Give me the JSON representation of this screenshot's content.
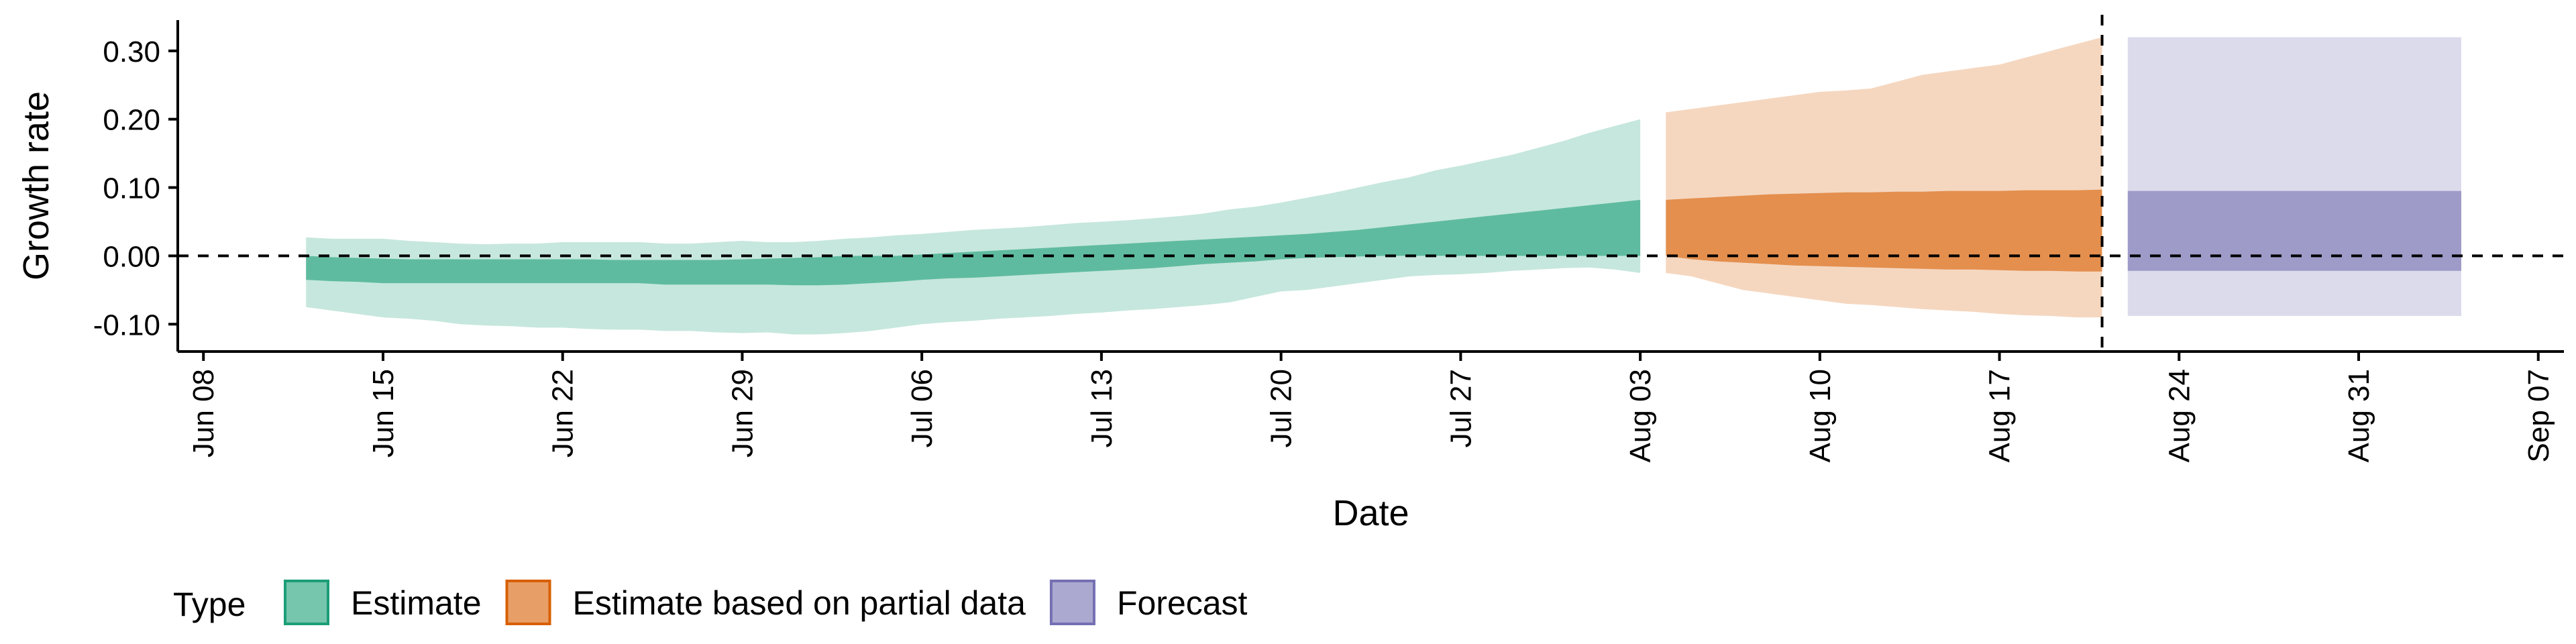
{
  "chart_data": {
    "type": "area",
    "title": "",
    "xlabel": "Date",
    "ylabel": "Growth rate",
    "x_axis": {
      "type": "date",
      "range": [
        "2020-06-07",
        "2020-09-08"
      ],
      "ticks": [
        {
          "date": "2020-06-08",
          "label": "Jun 08"
        },
        {
          "date": "2020-06-15",
          "label": "Jun 15"
        },
        {
          "date": "2020-06-22",
          "label": "Jun 22"
        },
        {
          "date": "2020-06-29",
          "label": "Jun 29"
        },
        {
          "date": "2020-07-06",
          "label": "Jul 06"
        },
        {
          "date": "2020-07-13",
          "label": "Jul 13"
        },
        {
          "date": "2020-07-20",
          "label": "Jul 20"
        },
        {
          "date": "2020-07-27",
          "label": "Jul 27"
        },
        {
          "date": "2020-08-03",
          "label": "Aug 03"
        },
        {
          "date": "2020-08-10",
          "label": "Aug 10"
        },
        {
          "date": "2020-08-17",
          "label": "Aug 17"
        },
        {
          "date": "2020-08-24",
          "label": "Aug 24"
        },
        {
          "date": "2020-08-31",
          "label": "Aug 31"
        },
        {
          "date": "2020-09-07",
          "label": "Sep 07"
        }
      ]
    },
    "y_axis": {
      "range": [
        -0.14,
        0.345
      ],
      "ticks": [
        {
          "value": -0.1,
          "label": "-0.10"
        },
        {
          "value": 0.0,
          "label": "0.00"
        },
        {
          "value": 0.1,
          "label": "0.10"
        },
        {
          "value": 0.2,
          "label": "0.20"
        },
        {
          "value": 0.3,
          "label": "0.30"
        }
      ]
    },
    "reference_lines": [
      {
        "axis": "y",
        "value": 0.0,
        "style": "dashed"
      },
      {
        "axis": "x",
        "date": "2020-08-21",
        "style": "dashed"
      }
    ],
    "grid": false,
    "legend": {
      "position": "bottom",
      "title": "Type"
    },
    "series": [
      {
        "name": "Estimate",
        "color": "#1b9e77",
        "x": [
          "2020-06-12",
          "2020-06-13",
          "2020-06-14",
          "2020-06-15",
          "2020-06-16",
          "2020-06-17",
          "2020-06-18",
          "2020-06-19",
          "2020-06-20",
          "2020-06-21",
          "2020-06-22",
          "2020-06-23",
          "2020-06-24",
          "2020-06-25",
          "2020-06-26",
          "2020-06-27",
          "2020-06-28",
          "2020-06-29",
          "2020-06-30",
          "2020-07-01",
          "2020-07-02",
          "2020-07-03",
          "2020-07-04",
          "2020-07-05",
          "2020-07-06",
          "2020-07-07",
          "2020-07-08",
          "2020-07-09",
          "2020-07-10",
          "2020-07-11",
          "2020-07-12",
          "2020-07-13",
          "2020-07-14",
          "2020-07-15",
          "2020-07-16",
          "2020-07-17",
          "2020-07-18",
          "2020-07-19",
          "2020-07-20",
          "2020-07-21",
          "2020-07-22",
          "2020-07-23",
          "2020-07-24",
          "2020-07-25",
          "2020-07-26",
          "2020-07-27",
          "2020-07-28",
          "2020-07-29",
          "2020-07-30",
          "2020-07-31",
          "2020-08-01",
          "2020-08-02",
          "2020-08-03"
        ],
        "lower_90": [
          -0.075,
          -0.08,
          -0.085,
          -0.09,
          -0.092,
          -0.095,
          -0.1,
          -0.102,
          -0.103,
          -0.105,
          -0.105,
          -0.107,
          -0.108,
          -0.108,
          -0.11,
          -0.11,
          -0.112,
          -0.113,
          -0.112,
          -0.115,
          -0.115,
          -0.113,
          -0.11,
          -0.105,
          -0.1,
          -0.097,
          -0.095,
          -0.092,
          -0.09,
          -0.088,
          -0.085,
          -0.083,
          -0.08,
          -0.078,
          -0.075,
          -0.072,
          -0.068,
          -0.06,
          -0.052,
          -0.05,
          -0.045,
          -0.04,
          -0.035,
          -0.03,
          -0.028,
          -0.027,
          -0.025,
          -0.022,
          -0.02,
          -0.018,
          -0.017,
          -0.02,
          -0.025
        ],
        "upper_90": [
          0.027,
          0.025,
          0.025,
          0.025,
          0.022,
          0.02,
          0.018,
          0.017,
          0.018,
          0.018,
          0.02,
          0.02,
          0.02,
          0.02,
          0.018,
          0.018,
          0.02,
          0.022,
          0.02,
          0.02,
          0.022,
          0.025,
          0.027,
          0.03,
          0.032,
          0.035,
          0.038,
          0.04,
          0.042,
          0.045,
          0.048,
          0.05,
          0.052,
          0.055,
          0.058,
          0.062,
          0.068,
          0.072,
          0.078,
          0.085,
          0.092,
          0.1,
          0.108,
          0.115,
          0.125,
          0.132,
          0.14,
          0.148,
          0.158,
          0.168,
          0.18,
          0.19,
          0.2
        ],
        "lower_50": [
          -0.035,
          -0.037,
          -0.038,
          -0.04,
          -0.04,
          -0.04,
          -0.04,
          -0.04,
          -0.04,
          -0.04,
          -0.04,
          -0.04,
          -0.04,
          -0.04,
          -0.042,
          -0.042,
          -0.042,
          -0.042,
          -0.042,
          -0.043,
          -0.043,
          -0.042,
          -0.04,
          -0.038,
          -0.035,
          -0.033,
          -0.032,
          -0.03,
          -0.028,
          -0.026,
          -0.024,
          -0.022,
          -0.02,
          -0.018,
          -0.015,
          -0.012,
          -0.01,
          -0.008,
          -0.005,
          -0.003,
          -0.002,
          -0.001,
          0.0,
          0.0,
          0.0,
          0.0,
          0.0,
          0.0,
          0.0,
          0.0,
          0.0,
          0.0,
          0.0
        ],
        "upper_50": [
          0.0,
          -0.002,
          -0.003,
          -0.004,
          -0.005,
          -0.005,
          -0.005,
          -0.005,
          -0.005,
          -0.005,
          -0.005,
          -0.005,
          -0.006,
          -0.006,
          -0.006,
          -0.006,
          -0.006,
          -0.005,
          -0.004,
          -0.003,
          -0.002,
          0.0,
          0.0,
          0.0,
          0.002,
          0.004,
          0.006,
          0.008,
          0.01,
          0.012,
          0.014,
          0.016,
          0.018,
          0.02,
          0.022,
          0.024,
          0.026,
          0.028,
          0.03,
          0.032,
          0.035,
          0.038,
          0.042,
          0.046,
          0.05,
          0.054,
          0.058,
          0.062,
          0.066,
          0.07,
          0.074,
          0.078,
          0.082
        ]
      },
      {
        "name": "Estimate based on partial data",
        "color": "#d95f02",
        "x": [
          "2020-08-04",
          "2020-08-05",
          "2020-08-06",
          "2020-08-07",
          "2020-08-08",
          "2020-08-09",
          "2020-08-10",
          "2020-08-11",
          "2020-08-12",
          "2020-08-13",
          "2020-08-14",
          "2020-08-15",
          "2020-08-16",
          "2020-08-17",
          "2020-08-18",
          "2020-08-19",
          "2020-08-20",
          "2020-08-21"
        ],
        "lower_90": [
          -0.025,
          -0.03,
          -0.04,
          -0.05,
          -0.055,
          -0.06,
          -0.065,
          -0.07,
          -0.072,
          -0.075,
          -0.078,
          -0.08,
          -0.082,
          -0.085,
          -0.087,
          -0.088,
          -0.09,
          -0.09
        ],
        "upper_90": [
          0.21,
          0.215,
          0.22,
          0.225,
          0.23,
          0.235,
          0.24,
          0.242,
          0.245,
          0.255,
          0.265,
          0.27,
          0.275,
          0.28,
          0.29,
          0.3,
          0.31,
          0.32
        ],
        "lower_50": [
          0.0,
          -0.005,
          -0.008,
          -0.01,
          -0.012,
          -0.014,
          -0.015,
          -0.016,
          -0.017,
          -0.018,
          -0.019,
          -0.02,
          -0.02,
          -0.021,
          -0.022,
          -0.022,
          -0.023,
          -0.023
        ],
        "upper_50": [
          0.082,
          0.084,
          0.086,
          0.088,
          0.09,
          0.091,
          0.092,
          0.093,
          0.093,
          0.094,
          0.094,
          0.095,
          0.095,
          0.095,
          0.096,
          0.096,
          0.096,
          0.097
        ]
      },
      {
        "name": "Forecast",
        "color": "#7570b3",
        "x": [
          "2020-08-22",
          "2020-09-04"
        ],
        "lower_90": [
          -0.088,
          -0.088
        ],
        "upper_90": [
          0.32,
          0.32
        ],
        "lower_50": [
          -0.022,
          -0.022
        ],
        "upper_50": [
          0.095,
          0.095
        ]
      }
    ]
  }
}
